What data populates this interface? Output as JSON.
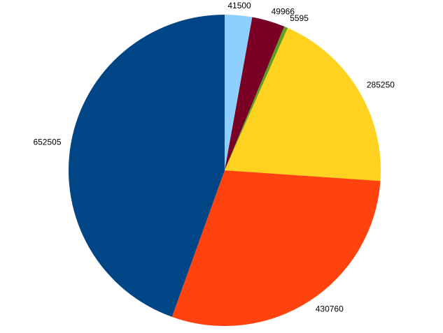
{
  "chart_data": {
    "type": "pie",
    "title": "",
    "start_angle_deg": 0,
    "direction": "clockwise",
    "legend": "none",
    "slices": [
      {
        "value": 41500,
        "label": "41500",
        "color": "#8ecfff"
      },
      {
        "value": 49966,
        "label": "49966",
        "color": "#7a0026"
      },
      {
        "value": 5595,
        "label": "5595",
        "color": "#5f9f1f"
      },
      {
        "value": 285250,
        "label": "285250",
        "color": "#ffd21f"
      },
      {
        "value": 430760,
        "label": "430760",
        "color": "#ff420e"
      },
      {
        "value": 652505,
        "label": "652505",
        "color": "#004586"
      }
    ]
  }
}
